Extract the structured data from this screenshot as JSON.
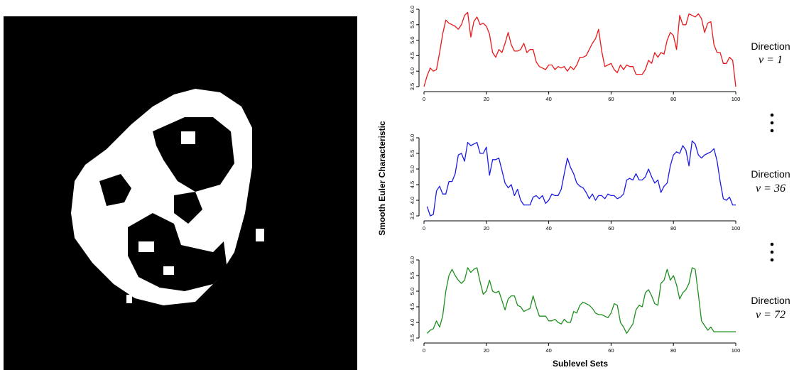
{
  "image": {
    "description_icon": "binary-pixel-shape-image"
  },
  "chart_data": [
    {
      "type": "line",
      "direction_label": "Direction",
      "nu_label": "ν = 1",
      "color": "#e8191b",
      "xlim": [
        0,
        100
      ],
      "ylim": [
        3.5,
        6.0
      ],
      "xticks": [
        0,
        20,
        40,
        60,
        80,
        100
      ],
      "yticks": [
        3.5,
        4.0,
        4.5,
        5.0,
        5.5,
        6.0
      ],
      "x": [
        0,
        1,
        2,
        3,
        4,
        5,
        6,
        7,
        8,
        9,
        10,
        11,
        12,
        13,
        14,
        15,
        16,
        17,
        18,
        19,
        20,
        21,
        22,
        23,
        24,
        25,
        26,
        27,
        28,
        29,
        30,
        31,
        32,
        33,
        34,
        35,
        36,
        37,
        38,
        39,
        40,
        41,
        42,
        43,
        44,
        45,
        46,
        47,
        48,
        49,
        50,
        51,
        52,
        53,
        54,
        55,
        56,
        57,
        58,
        59,
        60,
        61,
        62,
        63,
        64,
        65,
        66,
        67,
        68,
        69,
        70,
        71,
        72,
        73,
        74,
        75,
        76,
        77,
        78,
        79,
        80,
        81,
        82,
        83,
        84,
        85,
        86,
        87,
        88,
        89,
        90,
        91,
        92,
        93,
        94,
        95,
        96,
        97,
        98,
        99,
        100
      ],
      "values": [
        3.5,
        3.85,
        4.1,
        4.0,
        4.05,
        4.6,
        5.2,
        5.65,
        5.55,
        5.5,
        5.45,
        5.35,
        5.5,
        5.8,
        5.9,
        5.1,
        5.6,
        5.75,
        5.5,
        5.55,
        5.45,
        5.2,
        4.6,
        4.45,
        4.7,
        4.6,
        4.9,
        5.25,
        4.85,
        4.65,
        4.65,
        4.7,
        4.9,
        4.6,
        4.7,
        4.7,
        4.3,
        4.15,
        4.1,
        4.05,
        4.2,
        4.2,
        4.05,
        4.15,
        4.1,
        4.15,
        4.0,
        4.15,
        4.05,
        4.2,
        4.45,
        4.45,
        4.5,
        4.7,
        4.9,
        5.05,
        5.35,
        4.65,
        4.15,
        4.2,
        4.25,
        4.05,
        3.95,
        4.2,
        4.05,
        4.2,
        4.15,
        4.15,
        3.9,
        3.9,
        3.9,
        4.05,
        4.35,
        4.25,
        4.6,
        4.45,
        4.6,
        4.55,
        5.0,
        5.25,
        5.15,
        4.7,
        5.8,
        5.5,
        5.5,
        5.85,
        5.8,
        5.75,
        5.85,
        5.7,
        5.25,
        5.55,
        5.6,
        4.85,
        4.6,
        4.6,
        4.25,
        4.25,
        4.45,
        4.35,
        3.5
      ]
    },
    {
      "type": "line",
      "direction_label": "Direction",
      "nu_label": "ν = 36",
      "color": "#1a1ae6",
      "xlim": [
        0,
        100
      ],
      "ylim": [
        3.5,
        6.0
      ],
      "xticks": [
        0,
        20,
        40,
        60,
        80,
        100
      ],
      "yticks": [
        3.5,
        4.0,
        4.5,
        5.0,
        5.5,
        6.0
      ],
      "x": [
        1,
        2,
        3,
        4,
        5,
        6,
        7,
        8,
        9,
        10,
        11,
        12,
        13,
        14,
        15,
        16,
        17,
        18,
        19,
        20,
        21,
        22,
        23,
        24,
        25,
        26,
        27,
        28,
        29,
        30,
        31,
        32,
        33,
        34,
        35,
        36,
        37,
        38,
        39,
        40,
        41,
        42,
        43,
        44,
        45,
        46,
        47,
        48,
        49,
        50,
        51,
        52,
        53,
        54,
        55,
        56,
        57,
        58,
        59,
        60,
        61,
        62,
        63,
        64,
        65,
        66,
        67,
        68,
        69,
        70,
        71,
        72,
        73,
        74,
        75,
        76,
        77,
        78,
        79,
        80,
        81,
        82,
        83,
        84,
        85,
        86,
        87,
        88,
        89,
        90,
        91,
        92,
        93,
        94,
        95,
        96,
        97,
        98,
        99,
        100
      ],
      "values": [
        3.8,
        3.5,
        3.55,
        4.3,
        4.45,
        4.2,
        4.2,
        4.6,
        4.6,
        4.85,
        5.45,
        5.5,
        5.25,
        5.85,
        5.75,
        5.8,
        5.85,
        5.5,
        5.5,
        5.7,
        4.8,
        5.3,
        5.3,
        5.35,
        4.95,
        4.55,
        4.4,
        4.5,
        4.15,
        4.35,
        4.0,
        3.85,
        3.85,
        3.85,
        4.1,
        4.15,
        4.05,
        4.15,
        3.9,
        4.0,
        4.2,
        4.15,
        4.15,
        4.35,
        4.85,
        5.35,
        5.05,
        4.85,
        4.55,
        4.45,
        4.4,
        4.25,
        4.05,
        4.2,
        4.0,
        4.15,
        4.15,
        4.05,
        4.2,
        4.15,
        4.15,
        4.05,
        4.1,
        4.2,
        4.65,
        4.7,
        4.65,
        4.85,
        4.65,
        4.65,
        4.75,
        5.0,
        4.75,
        4.55,
        4.65,
        4.25,
        4.45,
        4.55,
        5.1,
        5.45,
        5.55,
        5.5,
        5.75,
        5.6,
        5.1,
        5.9,
        5.8,
        5.45,
        5.35,
        5.45,
        5.5,
        5.55,
        5.65,
        5.25,
        4.6,
        4.05,
        4.0,
        4.1,
        3.85,
        3.85
      ]
    },
    {
      "type": "line",
      "direction_label": "Direction",
      "nu_label": "ν = 72",
      "color": "#1f8f1f",
      "xlim": [
        0,
        100
      ],
      "ylim": [
        3.5,
        6.0
      ],
      "xticks": [
        0,
        20,
        40,
        60,
        80,
        100
      ],
      "yticks": [
        3.5,
        4.0,
        4.5,
        5.0,
        5.5,
        6.0
      ],
      "x": [
        1,
        2,
        3,
        4,
        5,
        6,
        7,
        8,
        9,
        10,
        11,
        12,
        13,
        14,
        15,
        16,
        17,
        18,
        19,
        20,
        21,
        22,
        23,
        24,
        25,
        26,
        27,
        28,
        29,
        30,
        31,
        32,
        33,
        34,
        35,
        36,
        37,
        38,
        39,
        40,
        41,
        42,
        43,
        44,
        45,
        46,
        47,
        48,
        49,
        50,
        51,
        52,
        53,
        54,
        55,
        56,
        57,
        58,
        59,
        60,
        61,
        62,
        63,
        64,
        65,
        66,
        67,
        68,
        69,
        70,
        71,
        72,
        73,
        74,
        75,
        76,
        77,
        78,
        79,
        80,
        81,
        82,
        83,
        84,
        85,
        86,
        87,
        88,
        89,
        90,
        91,
        92,
        93,
        94,
        95,
        96,
        97,
        98,
        99,
        100
      ],
      "values": [
        3.65,
        3.75,
        3.8,
        4.05,
        3.85,
        4.2,
        5.0,
        5.5,
        5.7,
        5.5,
        5.35,
        5.25,
        5.35,
        5.75,
        5.6,
        5.7,
        5.75,
        5.3,
        4.9,
        5.0,
        5.35,
        5.0,
        4.95,
        5.0,
        4.7,
        4.4,
        4.75,
        4.85,
        4.85,
        4.55,
        4.5,
        4.35,
        4.4,
        4.45,
        4.85,
        4.5,
        4.2,
        4.2,
        4.2,
        4.05,
        4.05,
        4.1,
        4.0,
        3.95,
        4.1,
        4.0,
        4.0,
        4.35,
        4.3,
        4.55,
        4.65,
        4.6,
        4.55,
        4.45,
        4.3,
        4.25,
        4.25,
        4.2,
        4.15,
        4.3,
        4.6,
        4.55,
        4.0,
        3.85,
        3.65,
        3.8,
        3.95,
        4.4,
        4.55,
        4.5,
        4.95,
        5.05,
        4.85,
        4.6,
        4.55,
        5.25,
        5.35,
        5.7,
        5.35,
        5.5,
        5.2,
        4.75,
        4.95,
        5.05,
        5.25,
        5.75,
        5.7,
        4.9,
        4.05,
        3.9,
        3.75,
        3.85,
        3.7,
        3.7,
        3.7,
        3.7,
        3.7,
        3.7,
        3.7,
        3.7
      ]
    }
  ],
  "labels": {
    "ylabel": "Smooth Euler Characteristic",
    "xlabel": "Sublevel Sets"
  }
}
